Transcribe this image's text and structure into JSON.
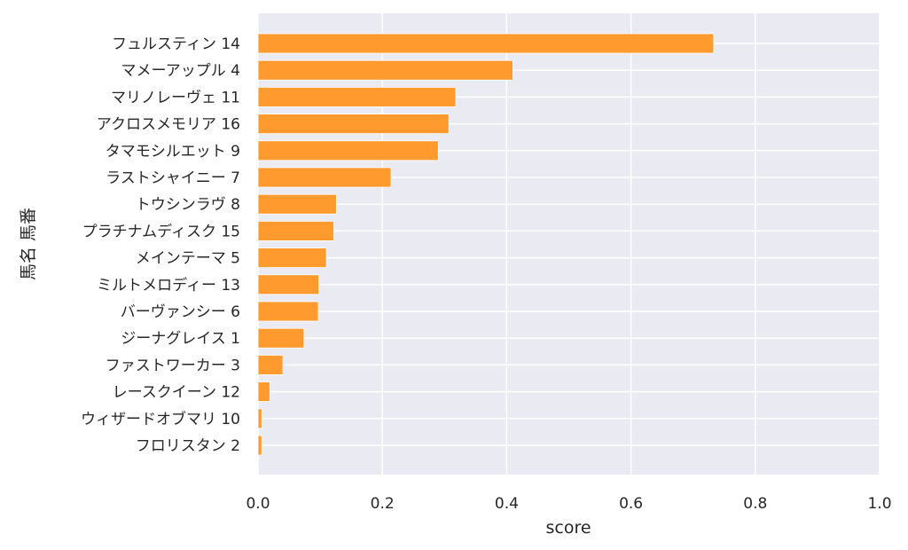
{
  "chart_data": {
    "type": "bar",
    "orientation": "horizontal",
    "xlabel": "score",
    "ylabel": "馬名 馬番",
    "xlim": [
      0,
      1.0
    ],
    "x_ticks": [
      "0.0",
      "0.2",
      "0.4",
      "0.6",
      "0.8",
      "1.0"
    ],
    "x_tick_values": [
      0,
      0.2,
      0.4,
      0.6,
      0.8,
      1.0
    ],
    "grid": true,
    "colors": {
      "bar": "#fe9a2e",
      "background": "#eaeaf2",
      "grid": "#ffffff"
    },
    "categories": [
      "フュルスティン 14",
      "マメーアップル 4",
      "マリノレーヴェ 11",
      "アクロスメモリア 16",
      "タマモシルエット 9",
      "ラストシャイニー 7",
      "トウシンラヴ 8",
      "プラチナムディスク 15",
      "メインテーマ 5",
      "ミルトメロディー 13",
      "バーヴァンシー 6",
      "ジーナグレイス 1",
      "ファストワーカー 3",
      "レースクイーン 12",
      "ウィザードオブマリ 10",
      "フロリスタン 2"
    ],
    "values": [
      0.733,
      0.41,
      0.318,
      0.307,
      0.29,
      0.214,
      0.126,
      0.122,
      0.11,
      0.098,
      0.097,
      0.074,
      0.04,
      0.019,
      0.006,
      0.006
    ]
  }
}
